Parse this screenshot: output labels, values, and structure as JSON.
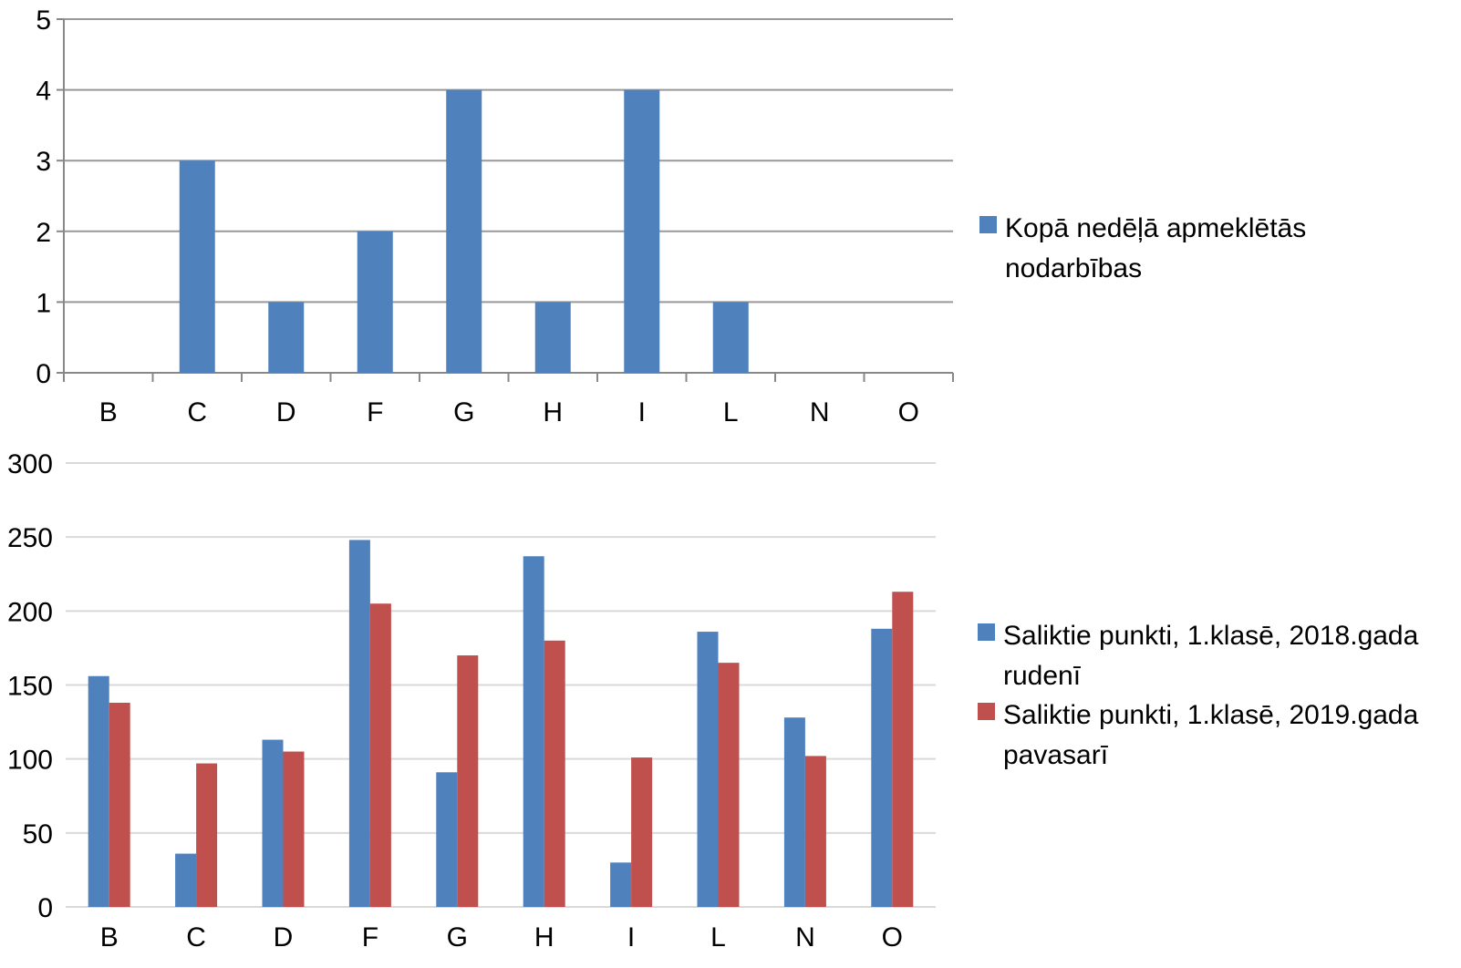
{
  "colors": {
    "series_blue": "#4f81bd",
    "series_red": "#c0504d",
    "grid": "#999999",
    "grid_light": "#d9d9d9",
    "axis": "#888888"
  },
  "chart_data": [
    {
      "type": "bar",
      "categories": [
        "B",
        "C",
        "D",
        "F",
        "G",
        "H",
        "I",
        "L",
        "N",
        "O"
      ],
      "series": [
        {
          "name_lines": [
            "Kopā nedēļā apmeklētās",
            "nodarbības"
          ],
          "color": "#4f81bd",
          "values": [
            0,
            3,
            1,
            2,
            4,
            1,
            4,
            1,
            0,
            0
          ]
        }
      ],
      "ylim": [
        0,
        5
      ],
      "yticks": [
        "0",
        "1",
        "2",
        "3",
        "4",
        "5"
      ],
      "grid": true,
      "legend_position": "right"
    },
    {
      "type": "bar",
      "categories": [
        "B",
        "C",
        "D",
        "F",
        "G",
        "H",
        "I",
        "L",
        "N",
        "O"
      ],
      "series": [
        {
          "name_lines": [
            "Saliktie punkti, 1.klasē, 2018.gada",
            "rudenī"
          ],
          "color": "#4f81bd",
          "values": [
            156,
            36,
            113,
            248,
            91,
            237,
            30,
            186,
            128,
            188
          ]
        },
        {
          "name_lines": [
            "Saliktie punkti, 1.klasē, 2019.gada",
            "pavasarī"
          ],
          "color": "#c0504d",
          "values": [
            138,
            97,
            105,
            205,
            170,
            180,
            101,
            165,
            102,
            213
          ]
        }
      ],
      "ylim": [
        0,
        300
      ],
      "yticks": [
        "0",
        "50",
        "100",
        "150",
        "200",
        "250",
        "300"
      ],
      "grid": true,
      "legend_position": "right"
    }
  ]
}
